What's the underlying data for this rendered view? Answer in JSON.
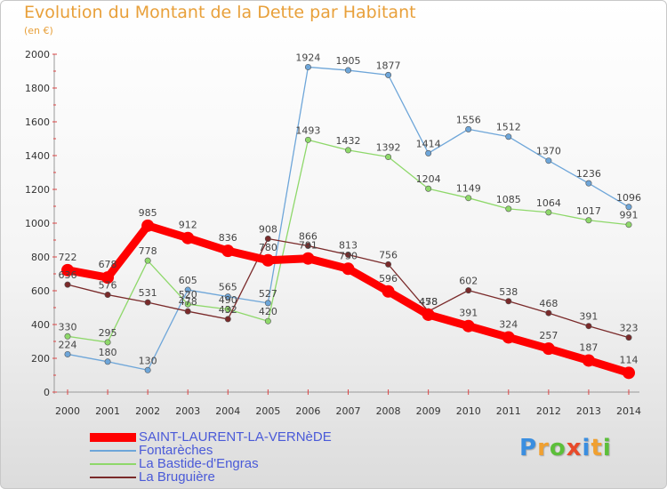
{
  "chart_data": {
    "type": "line",
    "title": "Evolution du Montant de la Dette par Habitant",
    "subtitle": "(en €)",
    "x": [
      "2000",
      "2001",
      "2002",
      "2003",
      "2004",
      "2005",
      "2006",
      "2007",
      "2008",
      "2009",
      "2010",
      "2011",
      "2012",
      "2013",
      "2014"
    ],
    "yticks": [
      0,
      200,
      400,
      600,
      800,
      1000,
      1200,
      1400,
      1600,
      1800,
      2000
    ],
    "ylim": [
      0,
      2000
    ],
    "grid": false,
    "legend_position": "bottom-left",
    "series": [
      {
        "name": "SAINT-LAURENT-LA-VERNèDE",
        "color": "#ff0000",
        "values": [
          722,
          678,
          985,
          912,
          836,
          780,
          791,
          730,
          596,
          458,
          391,
          324,
          257,
          187,
          114
        ],
        "labels": [
          "722",
          "678",
          "985",
          "912",
          "836",
          "780",
          "791",
          "730",
          "596",
          "458",
          "391",
          "324",
          "257",
          "187",
          "114"
        ]
      },
      {
        "name": "Fontarèches",
        "color": "#6ea6d9",
        "values": [
          224,
          180,
          130,
          605,
          565,
          527,
          1924,
          1905,
          1877,
          1414,
          1556,
          1512,
          1370,
          1236,
          1096
        ],
        "labels": [
          "224",
          "180",
          "130",
          "605",
          "565",
          "527",
          "1924",
          "1905",
          "1877",
          "1414",
          "1556",
          "1512",
          "1370",
          "1236",
          "1096"
        ]
      },
      {
        "name": "La Bastide-d'Engras",
        "color": "#8ed86a",
        "values": [
          330,
          295,
          778,
          520,
          490,
          420,
          1493,
          1432,
          1392,
          1204,
          1149,
          1085,
          1064,
          1017,
          991
        ],
        "labels": [
          "330",
          "295",
          "778",
          "520",
          "490",
          "420",
          "1493",
          "1432",
          "1392",
          "1204",
          "1149",
          "1085",
          "1064",
          "1017",
          "991"
        ]
      },
      {
        "name": "La Bruguière",
        "color": "#7a2a2a",
        "values": [
          636,
          576,
          531,
          478,
          432,
          908,
          866,
          813,
          756,
          478,
          602,
          538,
          468,
          391,
          323
        ],
        "labels": [
          "636",
          "576",
          "531",
          "478",
          "432",
          "908",
          "866",
          "813",
          "756",
          "478",
          "602",
          "538",
          "468",
          "391",
          "323"
        ]
      }
    ]
  },
  "brand": {
    "letters": [
      "P",
      "r",
      "o",
      "x",
      "i",
      "t",
      "i"
    ],
    "colors": [
      "#3a8ee0",
      "#f0a030",
      "#5cbf3a",
      "#e84a2a",
      "#3a8ee0",
      "#f0a030",
      "#5cbf3a"
    ]
  }
}
